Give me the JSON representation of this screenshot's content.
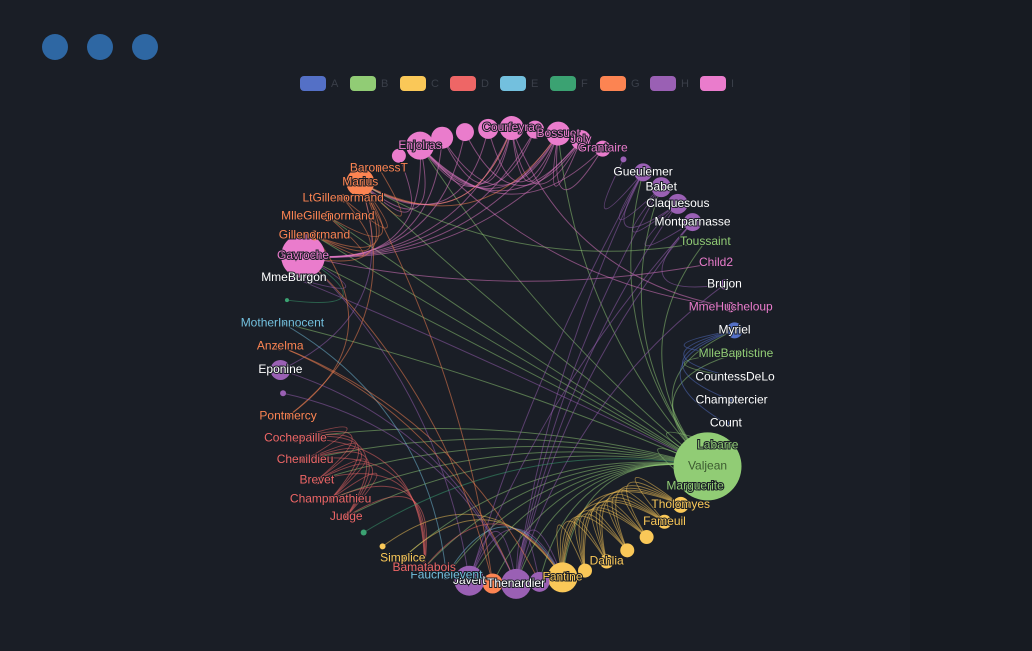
{
  "chart_data": {
    "type": "graph",
    "legend": [
      {
        "name": "A",
        "color": "#5470c6"
      },
      {
        "name": "B",
        "color": "#91cc75"
      },
      {
        "name": "C",
        "color": "#fac858"
      },
      {
        "name": "D",
        "color": "#ee6666"
      },
      {
        "name": "E",
        "color": "#73c0de"
      },
      {
        "name": "F",
        "color": "#3ba272"
      },
      {
        "name": "G",
        "color": "#fc8452"
      },
      {
        "name": "H",
        "color": "#9a60b4"
      },
      {
        "name": "I",
        "color": "#ea7ccc"
      }
    ],
    "nodes": [
      {
        "name": "Gavroche",
        "category": "I",
        "size": 22
      },
      {
        "name": "Gillenormand",
        "category": "G",
        "size": 5
      },
      {
        "name": "MlleGillenormand",
        "category": "G",
        "size": 5
      },
      {
        "name": "LtGillenormand",
        "category": "G",
        "size": 4
      },
      {
        "name": "Marius",
        "category": "G",
        "size": 14
      },
      {
        "name": "BaronessT",
        "category": "G",
        "size": 4
      },
      {
        "name": null,
        "category": "I",
        "size": 7
      },
      {
        "name": "Enjolras",
        "category": "I",
        "size": 14
      },
      {
        "name": null,
        "category": "I",
        "size": 11
      },
      {
        "name": null,
        "category": "I",
        "size": 9
      },
      {
        "name": null,
        "category": "I",
        "size": 10
      },
      {
        "name": "Courfeyrac",
        "category": "I",
        "size": 12
      },
      {
        "name": null,
        "category": "I",
        "size": 9
      },
      {
        "name": "Bossuet",
        "category": "I",
        "size": 12
      },
      {
        "name": "Joly",
        "category": "I",
        "size": 10
      },
      {
        "name": "Grantaire",
        "category": "I",
        "size": 8
      },
      {
        "name": null,
        "category": "H",
        "size": 3
      },
      {
        "name": "Gueulemer",
        "category": "H",
        "size": 9
      },
      {
        "name": "Babet",
        "category": "H",
        "size": 10
      },
      {
        "name": "Claquesous",
        "category": "H",
        "size": 10
      },
      {
        "name": "Montparnasse",
        "category": "H",
        "size": 9
      },
      {
        "name": "Toussaint",
        "category": "B",
        "size": 3
      },
      {
        "name": "Child2",
        "category": "I",
        "size": 3
      },
      {
        "name": "Brujon",
        "category": "H",
        "size": 5
      },
      {
        "name": "MmeHucheloup",
        "category": "I",
        "size": 5
      },
      {
        "name": "Myriel",
        "category": "A",
        "size": 8
      },
      {
        "name": "MlleBaptistine",
        "category": "B",
        "size": 4
      },
      {
        "name": "CountessDeLo",
        "category": "A",
        "size": 3
      },
      {
        "name": "Champtercier",
        "category": "A",
        "size": 3
      },
      {
        "name": "Count",
        "category": "A",
        "size": 3
      },
      {
        "name": "Labarre",
        "category": "B",
        "size": 3
      },
      {
        "name": "Valjean",
        "category": "B",
        "size": 34
      },
      {
        "name": "Marguerite",
        "category": "B",
        "size": 3
      },
      {
        "name": "Tholomyes",
        "category": "C",
        "size": 8
      },
      {
        "name": "Fameuil",
        "category": "C",
        "size": 7
      },
      {
        "name": null,
        "category": "C",
        "size": 7
      },
      {
        "name": null,
        "category": "C",
        "size": 7
      },
      {
        "name": "Dahlia",
        "category": "C",
        "size": 7
      },
      {
        "name": null,
        "category": "C",
        "size": 7
      },
      {
        "name": "Fantine",
        "category": "C",
        "size": 15
      },
      {
        "name": null,
        "category": "H",
        "size": 10
      },
      {
        "name": "Thenardier",
        "category": "H",
        "size": 15
      },
      {
        "name": null,
        "category": "G",
        "size": 10
      },
      {
        "name": "Javert",
        "category": "H",
        "size": 15
      },
      {
        "name": "Fauchelevent",
        "category": "E",
        "size": 4
      },
      {
        "name": "Bamatabois",
        "category": "D",
        "size": 4
      },
      {
        "name": "Simplice",
        "category": "C",
        "size": 3
      },
      {
        "name": null,
        "category": "C",
        "size": 3
      },
      {
        "name": null,
        "category": "F",
        "size": 3
      },
      {
        "name": "Judge",
        "category": "D",
        "size": 4
      },
      {
        "name": "Champmathieu",
        "category": "D",
        "size": 4
      },
      {
        "name": "Brevet",
        "category": "D",
        "size": 4
      },
      {
        "name": "Chenildieu",
        "category": "D",
        "size": 4
      },
      {
        "name": "Cochepaille",
        "category": "D",
        "size": 4
      },
      {
        "name": "Pontmercy",
        "category": "G",
        "size": 3
      },
      {
        "name": null,
        "category": "H",
        "size": 3
      },
      {
        "name": "Eponine",
        "category": "H",
        "size": 10
      },
      {
        "name": "Anzelma",
        "category": "G",
        "size": 4
      },
      {
        "name": "MotherInnocent",
        "category": "E",
        "size": 3
      },
      {
        "name": null,
        "category": "F",
        "size": 2
      },
      {
        "name": "MmeBurgon",
        "category": "H",
        "size": 3
      }
    ],
    "links": [
      [
        31,
        25
      ],
      [
        31,
        26
      ],
      [
        31,
        30
      ],
      [
        31,
        32
      ],
      [
        31,
        39
      ],
      [
        31,
        41
      ],
      [
        31,
        43
      ],
      [
        31,
        44
      ],
      [
        31,
        45
      ],
      [
        31,
        46
      ],
      [
        31,
        49
      ],
      [
        31,
        50
      ],
      [
        31,
        51
      ],
      [
        31,
        52
      ],
      [
        31,
        53
      ],
      [
        31,
        4
      ],
      [
        31,
        0
      ],
      [
        31,
        1
      ],
      [
        31,
        2
      ],
      [
        31,
        58
      ],
      [
        31,
        42
      ],
      [
        31,
        40
      ],
      [
        31,
        21
      ],
      [
        31,
        13
      ],
      [
        31,
        7
      ],
      [
        31,
        17
      ],
      [
        31,
        18
      ],
      [
        7,
        11
      ],
      [
        7,
        13
      ],
      [
        7,
        14
      ],
      [
        7,
        0
      ],
      [
        7,
        4
      ],
      [
        8,
        11
      ],
      [
        8,
        13
      ],
      [
        9,
        14
      ],
      [
        10,
        13
      ],
      [
        11,
        13
      ],
      [
        11,
        14
      ],
      [
        11,
        0
      ],
      [
        11,
        4
      ],
      [
        13,
        14
      ],
      [
        13,
        0
      ],
      [
        14,
        0
      ],
      [
        15,
        7
      ],
      [
        15,
        13
      ],
      [
        12,
        7
      ],
      [
        12,
        0
      ],
      [
        6,
        4
      ],
      [
        4,
        0
      ],
      [
        4,
        11
      ],
      [
        4,
        13
      ],
      [
        24,
        7
      ],
      [
        24,
        11
      ],
      [
        22,
        0
      ],
      [
        8,
        0
      ],
      [
        9,
        0
      ],
      [
        10,
        4
      ],
      [
        17,
        18
      ],
      [
        17,
        19
      ],
      [
        18,
        19
      ],
      [
        19,
        20
      ],
      [
        20,
        23
      ],
      [
        17,
        41
      ],
      [
        18,
        41
      ],
      [
        19,
        41
      ],
      [
        20,
        41
      ],
      [
        23,
        41
      ],
      [
        41,
        43
      ],
      [
        41,
        39
      ],
      [
        41,
        56
      ],
      [
        56,
        4
      ],
      [
        40,
        41
      ],
      [
        43,
        0
      ],
      [
        43,
        39
      ],
      [
        20,
        43
      ],
      [
        17,
        43
      ],
      [
        33,
        34
      ],
      [
        33,
        35
      ],
      [
        33,
        36
      ],
      [
        33,
        37
      ],
      [
        33,
        38
      ],
      [
        33,
        39
      ],
      [
        34,
        35
      ],
      [
        34,
        36
      ],
      [
        34,
        37
      ],
      [
        34,
        38
      ],
      [
        34,
        39
      ],
      [
        35,
        36
      ],
      [
        35,
        37
      ],
      [
        35,
        38
      ],
      [
        35,
        39
      ],
      [
        36,
        37
      ],
      [
        36,
        38
      ],
      [
        36,
        39
      ],
      [
        37,
        38
      ],
      [
        37,
        39
      ],
      [
        38,
        39
      ],
      [
        45,
        49
      ],
      [
        45,
        50
      ],
      [
        45,
        51
      ],
      [
        45,
        52
      ],
      [
        45,
        53
      ],
      [
        49,
        50
      ],
      [
        49,
        51
      ],
      [
        49,
        52
      ],
      [
        49,
        53
      ],
      [
        50,
        51
      ],
      [
        50,
        52
      ],
      [
        50,
        53
      ],
      [
        51,
        52
      ],
      [
        51,
        53
      ],
      [
        52,
        53
      ],
      [
        46,
        39
      ],
      [
        45,
        39
      ],
      [
        25,
        26
      ],
      [
        25,
        27
      ],
      [
        25,
        28
      ],
      [
        25,
        29
      ],
      [
        26,
        27
      ],
      [
        1,
        2
      ],
      [
        1,
        3
      ],
      [
        1,
        4
      ],
      [
        2,
        4
      ],
      [
        3,
        4
      ],
      [
        5,
        4
      ],
      [
        54,
        4
      ],
      [
        54,
        1
      ],
      [
        44,
        58
      ],
      [
        44,
        39
      ],
      [
        47,
        39
      ],
      [
        48,
        31
      ],
      [
        60,
        31
      ],
      [
        57,
        41
      ],
      [
        57,
        40
      ],
      [
        55,
        41
      ],
      [
        59,
        0
      ],
      [
        60,
        0
      ],
      [
        42,
        4
      ],
      [
        42,
        0
      ],
      [
        21,
        4
      ],
      [
        16,
        17
      ]
    ]
  }
}
